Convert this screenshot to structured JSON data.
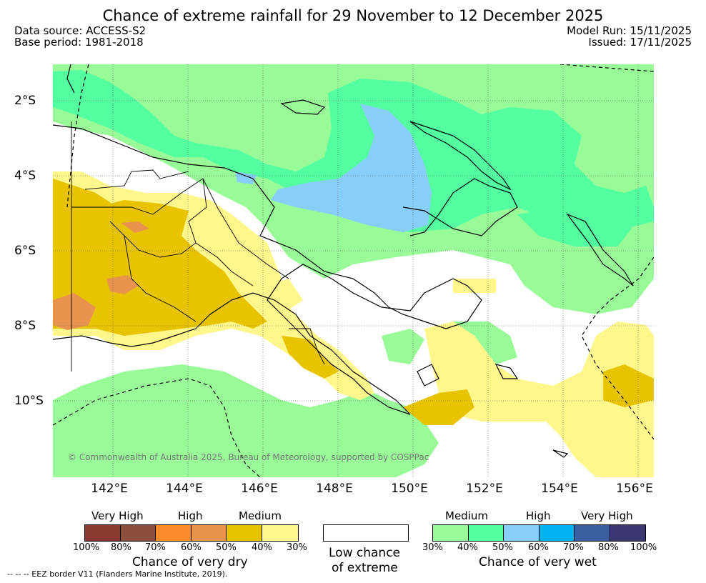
{
  "header": {
    "title": "Chance of extreme rainfall for 29 November to 12 December 2025",
    "data_source": "Data source: ACCESS-S2",
    "base_period": "Base period: 1981-2018",
    "model_run": "Model Run: 15/11/2025",
    "issued": "Issued: 17/11/2025"
  },
  "map": {
    "lat_labels": [
      "2°S",
      "4°S",
      "6°S",
      "8°S",
      "10°S"
    ],
    "lon_labels": [
      "142°E",
      "144°E",
      "146°E",
      "148°E",
      "150°E",
      "152°E",
      "154°E",
      "156°E"
    ],
    "copyright": "© Commonwealth of Australia 2025, Bureau of Meteorology, supported by COSPPac"
  },
  "legend": {
    "dry": {
      "categories": [
        "Very High",
        "High",
        "Medium"
      ],
      "colors": [
        "#8b3a32",
        "#8b4e3c",
        "#ff8c2a",
        "#e8944e",
        "#e8c400",
        "#fff68c"
      ],
      "ticks": [
        "100%",
        "80%",
        "70%",
        "60%",
        "50%",
        "40%",
        "30%"
      ],
      "title": "Chance of very dry"
    },
    "low": {
      "line1": "Low chance",
      "line2": "of extreme",
      "color": "#ffffff"
    },
    "wet": {
      "categories": [
        "Medium",
        "High",
        "Very High"
      ],
      "colors": [
        "#98fb98",
        "#54ff9f",
        "#87cefa",
        "#00b2ee",
        "#3a5f9e",
        "#3c3874"
      ],
      "ticks": [
        "30%",
        "40%",
        "50%",
        "60%",
        "70%",
        "80%",
        "100%"
      ],
      "title": "Chance of very wet"
    }
  },
  "footer": {
    "eez": "--  --  -- EEZ border V11 (Flanders Marine Institute, 2019)."
  }
}
